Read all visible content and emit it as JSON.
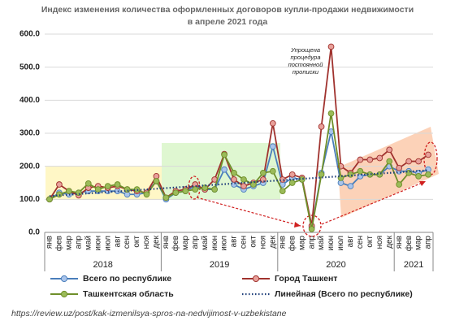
{
  "chart_data": {
    "type": "line",
    "title": [
      "Индекс изменения количества оформленных договоров купли-продажи недвижимости",
      "в апреле 2021 года"
    ],
    "categories": [
      "янв",
      "фев",
      "мар",
      "апр",
      "май",
      "июн",
      "июл",
      "авг",
      "сен",
      "окт",
      "ноя",
      "дек",
      "янв",
      "фев",
      "мар",
      "апр",
      "май",
      "июн",
      "июл",
      "авг",
      "сен",
      "окт",
      "ноя",
      "дек",
      "янв",
      "фев",
      "мар",
      "апр",
      "май",
      "июн",
      "июл",
      "авг",
      "сен",
      "окт",
      "ноя",
      "дек",
      "янв",
      "фев",
      "мар",
      "апр"
    ],
    "years": [
      "2018",
      "2019",
      "2020",
      "2021"
    ],
    "series": [
      {
        "name": "Всего по республике",
        "color": "#4a7ebb",
        "marker": "#a9c4eb",
        "values": [
          100,
          120,
          115,
          120,
          125,
          125,
          125,
          125,
          115,
          115,
          120,
          155,
          100,
          120,
          125,
          140,
          130,
          130,
          190,
          145,
          130,
          140,
          150,
          260,
          145,
          165,
          160,
          15,
          180,
          305,
          150,
          140,
          170,
          175,
          175,
          200,
          185,
          185,
          180,
          190
        ]
      },
      {
        "name": "Город Ташкент",
        "color": "#a0322e",
        "marker": "#e8a09a",
        "values": [
          100,
          145,
          125,
          112,
          135,
          140,
          135,
          140,
          130,
          125,
          120,
          170,
          105,
          125,
          130,
          145,
          130,
          160,
          237,
          160,
          140,
          150,
          160,
          330,
          160,
          175,
          165,
          20,
          320,
          562,
          200,
          180,
          220,
          220,
          225,
          250,
          195,
          215,
          215,
          235
        ]
      },
      {
        "name": "Ташкентская область",
        "color": "#6f8f2a",
        "marker": "#9bbb59",
        "values": [
          100,
          115,
          125,
          120,
          148,
          130,
          140,
          145,
          130,
          130,
          115,
          155,
          105,
          120,
          125,
          130,
          135,
          130,
          235,
          180,
          160,
          145,
          180,
          185,
          125,
          150,
          160,
          10,
          175,
          360,
          165,
          175,
          185,
          175,
          175,
          215,
          145,
          180,
          170,
          175
        ]
      },
      {
        "name": "Линейная (Всего по республике)",
        "color": "#1f3f7a",
        "style": "dotted",
        "values": [
          110,
          112,
          114,
          116,
          118,
          120,
          122,
          124,
          126,
          128,
          130,
          132,
          134,
          136,
          138,
          140,
          142,
          144,
          146,
          148,
          150,
          152,
          154,
          156,
          158,
          160,
          162,
          164,
          166,
          168,
          170,
          172,
          174,
          176,
          178,
          180,
          182,
          184,
          186,
          188
        ]
      }
    ],
    "ylim": [
      0,
      600
    ],
    "yticks": [
      {
        "value": 0,
        "label": "0.0"
      },
      {
        "value": 100,
        "label": "100.0"
      },
      {
        "value": 200,
        "label": "200.0"
      },
      {
        "value": 300,
        "label": "300.0"
      },
      {
        "value": 400,
        "label": "400.0"
      },
      {
        "value": 500,
        "label": "500.0"
      },
      {
        "value": 600,
        "label": "600.0"
      }
    ],
    "grid": true,
    "annotation": [
      "Упрощена",
      "процедура",
      "постоянной",
      "прописки"
    ],
    "source": "https://review.uz/post/kak-izmenilsya-spros-na-nedvijimost-v-uzbekistane"
  }
}
